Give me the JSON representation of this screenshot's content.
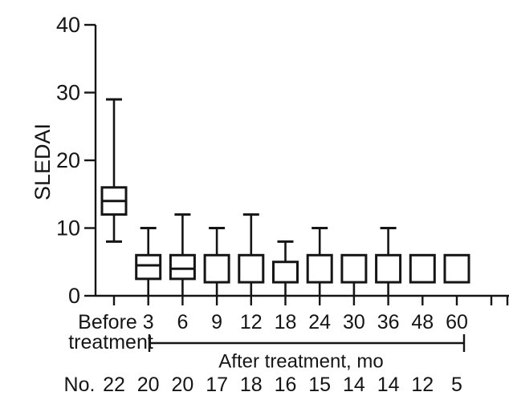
{
  "figure": {
    "background": "#ffffff",
    "ink_color": "#151515"
  },
  "chart_data": {
    "type": "box",
    "title": "",
    "ylabel": "SLEDAI",
    "ylim": [
      0,
      40
    ],
    "yticks": [
      0,
      10,
      20,
      30,
      40
    ],
    "grid": false,
    "categories": [
      "Before treatment",
      "3",
      "6",
      "9",
      "12",
      "18",
      "24",
      "30",
      "36",
      "48",
      "60"
    ],
    "boxes": [
      {
        "key": "before",
        "label": "Before treatment",
        "label_lines": [
          "Before",
          "treatment"
        ],
        "n": 22,
        "whisker_low": 8,
        "q1": 12,
        "median": 14,
        "q3": 16,
        "whisker_high": 29
      },
      {
        "key": "3mo",
        "label": "3",
        "n": 20,
        "whisker_low": 0,
        "q1": 2.5,
        "median": 4.5,
        "q3": 6,
        "whisker_high": 10
      },
      {
        "key": "6mo",
        "label": "6",
        "n": 20,
        "whisker_low": 0,
        "q1": 2.5,
        "median": 4,
        "q3": 6,
        "whisker_high": 12
      },
      {
        "key": "9mo",
        "label": "9",
        "n": 17,
        "whisker_low": 0,
        "q1": 2,
        "median": null,
        "q3": 6,
        "whisker_high": 10
      },
      {
        "key": "12mo",
        "label": "12",
        "n": 18,
        "whisker_low": 0,
        "q1": 2,
        "median": null,
        "q3": 6,
        "whisker_high": 12
      },
      {
        "key": "18mo",
        "label": "18",
        "n": 16,
        "whisker_low": 0,
        "q1": 2,
        "median": null,
        "q3": 5,
        "whisker_high": 8
      },
      {
        "key": "24mo",
        "label": "24",
        "n": 15,
        "whisker_low": 0,
        "q1": 2,
        "median": null,
        "q3": 6,
        "whisker_high": 10
      },
      {
        "key": "30mo",
        "label": "30",
        "n": 14,
        "whisker_low": 0,
        "q1": 2,
        "median": null,
        "q3": 6,
        "whisker_high": null
      },
      {
        "key": "36mo",
        "label": "36",
        "n": 14,
        "whisker_low": 0,
        "q1": 2,
        "median": null,
        "q3": 6,
        "whisker_high": 10
      },
      {
        "key": "48mo",
        "label": "48",
        "n": 12,
        "whisker_low": null,
        "q1": 2,
        "median": null,
        "q3": 6,
        "whisker_high": null
      },
      {
        "key": "60mo",
        "label": "60",
        "n": 5,
        "whisker_low": null,
        "q1": 2,
        "median": null,
        "q3": 6,
        "whisker_high": null
      }
    ],
    "after_bracket": {
      "label": "After treatment, mo"
    },
    "n_row": {
      "label": "No."
    }
  }
}
